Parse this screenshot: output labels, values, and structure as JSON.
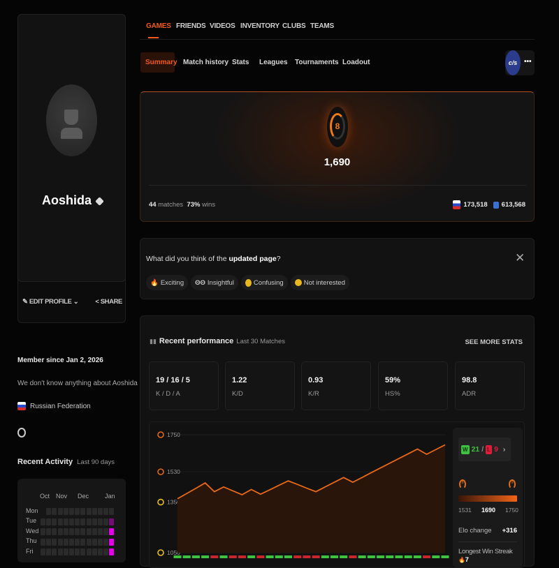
{
  "profile": {
    "username": "Aoshida",
    "edit_label": "EDIT PROFILE",
    "share_label": "SHARE",
    "member_since": "Member since Jan 2, 2026",
    "about": "We don't know anything about Aoshida",
    "country": "Russian Federation"
  },
  "activity": {
    "title": "Recent Activity",
    "subtitle": "Last 90 days",
    "months": [
      "Oct",
      "Nov",
      "Dec",
      "Jan"
    ],
    "days": [
      "Mon",
      "Tue",
      "Wed",
      "Thu",
      "Fri"
    ],
    "last_week_levels": {
      "Mon": 0,
      "Tue": 0.5,
      "Wed": 1,
      "Thu": 1,
      "Fri": 1
    },
    "active_color": "#e400e8"
  },
  "nav": {
    "tabs": [
      "GAMES",
      "FRIENDS",
      "VIDEOS",
      "INVENTORY",
      "CLUBS",
      "TEAMS"
    ],
    "active": "GAMES"
  },
  "subtabs": {
    "items": [
      "Summary",
      "Match history",
      "Stats",
      "Leagues",
      "Tournaments",
      "Loadout"
    ],
    "active": "Summary",
    "game_logo": "cs"
  },
  "hero": {
    "level": "8",
    "elo": "1,690",
    "matches_value": "44",
    "matches_label": "matches",
    "wins_value": "73%",
    "wins_label": "wins",
    "country_rank": "173,518",
    "region_rank": "613,568"
  },
  "feedback": {
    "question_prefix": "What did you think of the ",
    "question_bold": "updated page",
    "question_suffix": "?",
    "options": [
      {
        "icon": "fire",
        "label": "Exciting"
      },
      {
        "icon": "eyes",
        "label": "Insightful"
      },
      {
        "icon": "thinking",
        "label": "Confusing"
      },
      {
        "icon": "neutral",
        "label": "Not interested"
      }
    ]
  },
  "performance": {
    "title": "Recent performance",
    "subtitle": "Last 30 Matches",
    "see_more": "SEE MORE STATS",
    "stats": [
      {
        "value": "19 / 16 / 5",
        "label": "K / D / A"
      },
      {
        "value": "1.22",
        "label": "K/D"
      },
      {
        "value": "0.93",
        "label": "K/R"
      },
      {
        "value": "59%",
        "label": "HS%"
      },
      {
        "value": "98.8",
        "label": "ADR"
      }
    ],
    "wins": "21",
    "losses": "9",
    "wins_badge": "W",
    "losses_badge": "L",
    "range_min": "1531",
    "range_current": "1690",
    "range_max": "1750",
    "range_level_from": "8",
    "range_level_to": "9",
    "elo_change_label": "Elo change",
    "elo_change": "+316",
    "streak_label": "Longest Win Streak",
    "streak": "7"
  },
  "chart_data": {
    "type": "line",
    "x": [
      1,
      2,
      3,
      4,
      5,
      6,
      7,
      8,
      9,
      10,
      11,
      12,
      13,
      14,
      15,
      16,
      17,
      18,
      19,
      20,
      21,
      22,
      23,
      24,
      25,
      26,
      27,
      28,
      29,
      30
    ],
    "values": [
      1370,
      1401,
      1432,
      1464,
      1412,
      1440,
      1417,
      1394,
      1425,
      1397,
      1423,
      1450,
      1476,
      1455,
      1433,
      1412,
      1440,
      1468,
      1496,
      1468,
      1496,
      1525,
      1553,
      1581,
      1609,
      1637,
      1665,
      1634,
      1662,
      1690
    ],
    "results": [
      "W",
      "W",
      "W",
      "W",
      "L",
      "W",
      "L",
      "L",
      "W",
      "L",
      "W",
      "W",
      "W",
      "L",
      "L",
      "L",
      "W",
      "W",
      "W",
      "L",
      "W",
      "W",
      "W",
      "W",
      "W",
      "W",
      "W",
      "L",
      "W",
      "W"
    ],
    "yticks": [
      {
        "value": 1750,
        "level": "9"
      },
      {
        "value": 1530,
        "level": "8"
      },
      {
        "value": 1350,
        "level": "7"
      },
      {
        "value": 1050,
        "level": "5"
      }
    ],
    "ylim": [
      1050,
      1750
    ],
    "line_color": "#e8681a",
    "win_color": "#3fc23f",
    "loss_color": "#c8262c"
  }
}
